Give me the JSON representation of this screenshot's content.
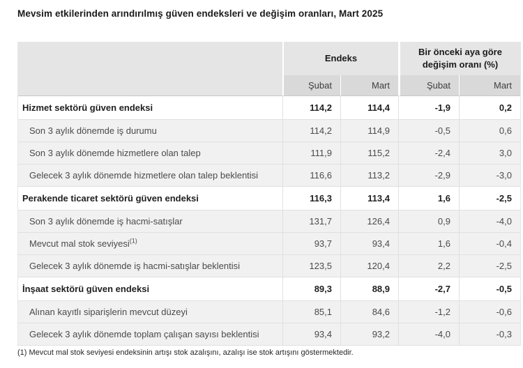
{
  "title": "Mevsim etkilerinden arındırılmış güven endeksleri ve değişim oranları, Mart 2025",
  "table": {
    "column_groups": {
      "endeks": "Endeks",
      "change": "Bir önceki aya göre değişim oranı (%)"
    },
    "sub_headers": [
      "Şubat",
      "Mart",
      "Şubat",
      "Mart"
    ],
    "rows": [
      {
        "label": "Hizmet sektörü güven endeksi",
        "values": [
          "114,2",
          "114,4",
          "-1,9",
          "0,2"
        ]
      },
      {
        "label": "Son 3 aylık dönemde iş durumu",
        "values": [
          "114,2",
          "114,9",
          "-0,5",
          "0,6"
        ]
      },
      {
        "label": "Son 3 aylık dönemde hizmetlere olan talep",
        "values": [
          "111,9",
          "115,2",
          "-2,4",
          "3,0"
        ]
      },
      {
        "label": "Gelecek 3 aylık dönemde hizmetlere olan talep beklentisi",
        "values": [
          "116,6",
          "113,2",
          "-2,9",
          "-3,0"
        ]
      },
      {
        "label": "Perakende ticaret sektörü güven endeksi",
        "values": [
          "116,3",
          "113,4",
          "1,6",
          "-2,5"
        ]
      },
      {
        "label": "Son 3 aylık dönemde iş hacmi-satışlar",
        "values": [
          "131,7",
          "126,4",
          "0,9",
          "-4,0"
        ]
      },
      {
        "label": "Mevcut mal stok seviyesi",
        "superscript": "(1)",
        "values": [
          "93,7",
          "93,4",
          "1,6",
          "-0,4"
        ]
      },
      {
        "label": "Gelecek 3 aylık dönemde iş hacmi-satışlar beklentisi",
        "values": [
          "123,5",
          "120,4",
          "2,2",
          "-2,5"
        ]
      },
      {
        "label": "İnşaat sektörü güven endeksi",
        "values": [
          "89,3",
          "88,9",
          "-2,7",
          "-0,5"
        ]
      },
      {
        "label": "Alınan kayıtlı siparişlerin mevcut düzeyi",
        "values": [
          "85,1",
          "84,6",
          "-1,2",
          "-0,6"
        ]
      },
      {
        "label": "Gelecek 3 aylık dönemde toplam çalışan sayısı beklentisi",
        "values": [
          "93,4",
          "93,2",
          "-4,0",
          "-0,3"
        ]
      }
    ],
    "footnote": "(1) Mevcut mal stok seviyesi endeksinin artışı stok azalışını, azalışı ise stok artışını göstermektedir."
  },
  "colors": {
    "header_bg": "#e5e5e5",
    "subheader_bg": "#d9d9d9",
    "subrow_bg": "#f1f1f1",
    "grid_border": "#e0e0e0",
    "header_border": "#c6c6c6",
    "text": "#1f1f1f"
  },
  "chart_data": {
    "type": "table",
    "title": "Mevsim etkilerinden arındırılmış güven endeksleri ve değişim oranları, Mart 2025",
    "column_groups": [
      "Endeks",
      "Bir önceki aya göre değişim oranı (%)"
    ],
    "columns": [
      "Endeks Şubat",
      "Endeks Mart",
      "Değişim oranı (%) Şubat",
      "Değişim oranı (%) Mart"
    ],
    "rows": [
      {
        "label": "Hizmet sektörü güven endeksi",
        "is_section": true,
        "endeks_subat": 114.2,
        "endeks_mart": 114.4,
        "degisim_subat": -1.9,
        "degisim_mart": 0.2
      },
      {
        "label": "Son 3 aylık dönemde iş durumu",
        "is_section": false,
        "endeks_subat": 114.2,
        "endeks_mart": 114.9,
        "degisim_subat": -0.5,
        "degisim_mart": 0.6
      },
      {
        "label": "Son 3 aylık dönemde hizmetlere olan talep",
        "is_section": false,
        "endeks_subat": 111.9,
        "endeks_mart": 115.2,
        "degisim_subat": -2.4,
        "degisim_mart": 3.0
      },
      {
        "label": "Gelecek 3 aylık dönemde hizmetlere olan talep beklentisi",
        "is_section": false,
        "endeks_subat": 116.6,
        "endeks_mart": 113.2,
        "degisim_subat": -2.9,
        "degisim_mart": -3.0
      },
      {
        "label": "Perakende ticaret sektörü güven endeksi",
        "is_section": true,
        "endeks_subat": 116.3,
        "endeks_mart": 113.4,
        "degisim_subat": 1.6,
        "degisim_mart": -2.5
      },
      {
        "label": "Son 3 aylık dönemde iş hacmi-satışlar",
        "is_section": false,
        "endeks_subat": 131.7,
        "endeks_mart": 126.4,
        "degisim_subat": 0.9,
        "degisim_mart": -4.0
      },
      {
        "label": "Mevcut mal stok seviyesi (1)",
        "is_section": false,
        "endeks_subat": 93.7,
        "endeks_mart": 93.4,
        "degisim_subat": 1.6,
        "degisim_mart": -0.4
      },
      {
        "label": "Gelecek 3 aylık dönemde iş hacmi-satışlar beklentisi",
        "is_section": false,
        "endeks_subat": 123.5,
        "endeks_mart": 120.4,
        "degisim_subat": 2.2,
        "degisim_mart": -2.5
      },
      {
        "label": "İnşaat sektörü güven endeksi",
        "is_section": true,
        "endeks_subat": 89.3,
        "endeks_mart": 88.9,
        "degisim_subat": -2.7,
        "degisim_mart": -0.5
      },
      {
        "label": "Alınan kayıtlı siparişlerin mevcut düzeyi",
        "is_section": false,
        "endeks_subat": 85.1,
        "endeks_mart": 84.6,
        "degisim_subat": -1.2,
        "degisim_mart": -0.6
      },
      {
        "label": "Gelecek 3 aylık dönemde toplam çalışan sayısı beklentisi",
        "is_section": false,
        "endeks_subat": 93.4,
        "endeks_mart": 93.2,
        "degisim_subat": -4.0,
        "degisim_mart": -0.3
      }
    ],
    "footnote": "(1) Mevcut mal stok seviyesi endeksinin artışı stok azalışını, azalışı ise stok artışını göstermektedir."
  }
}
